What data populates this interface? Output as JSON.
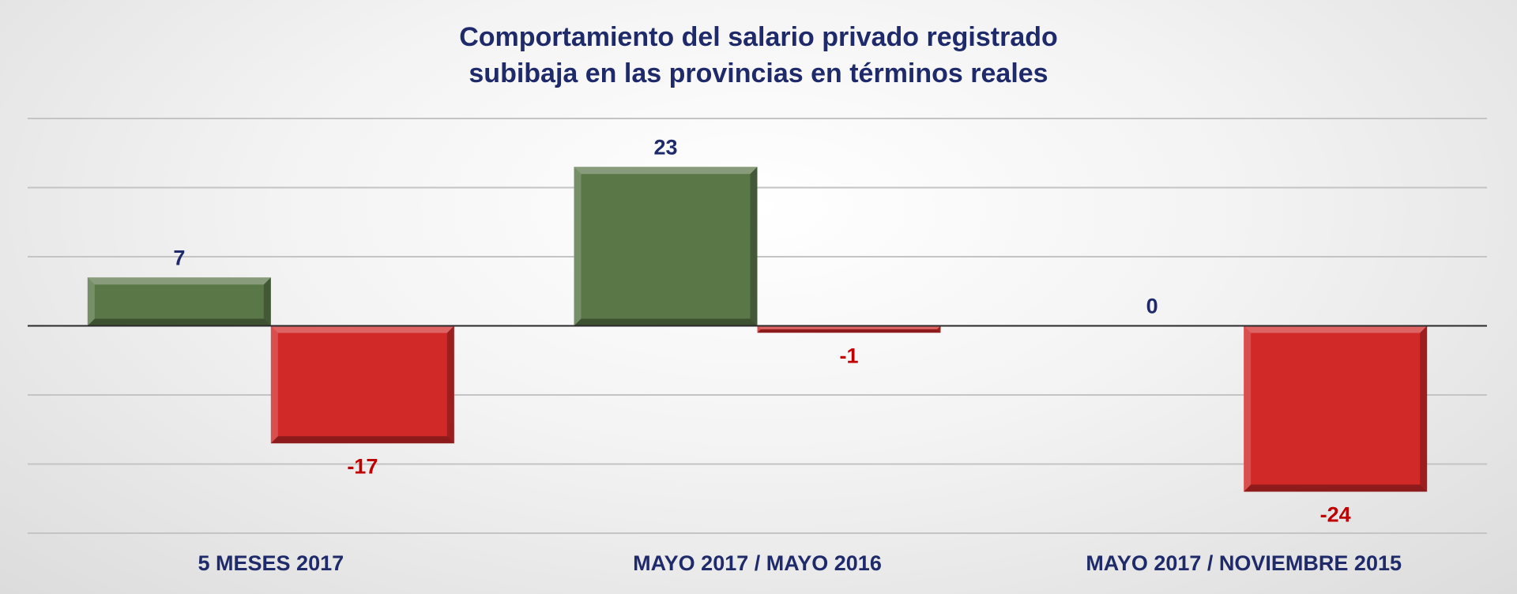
{
  "chart_data": {
    "type": "bar",
    "title_lines": [
      "Comportamiento del salario privado registrado",
      "subibaja en las provincias en términos reales"
    ],
    "categories": [
      "5 MESES 2017",
      "MAYO 2017 / MAYO 2016",
      "MAYO 2017 / NOVIEMBRE 2015"
    ],
    "series": [
      {
        "values": [
          7,
          23,
          0
        ],
        "color": "#5a7748"
      },
      {
        "values": [
          -17,
          -1,
          -24
        ],
        "color": "#d12828"
      }
    ],
    "data_labels": [
      [
        "7",
        "23",
        "0"
      ],
      [
        "-17",
        "-1",
        "-24"
      ]
    ],
    "positive_label_color": "#1f2a6b",
    "negative_label_color": "#c00000",
    "ylim": [
      -30,
      30
    ],
    "gridline_step": 10,
    "grid": true,
    "legend": false
  }
}
